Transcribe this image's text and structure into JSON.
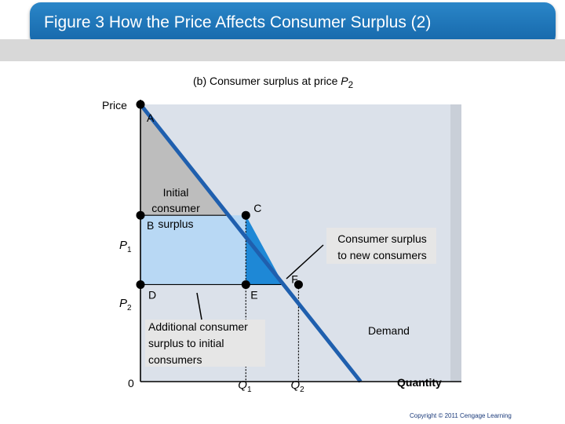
{
  "header": {
    "title": "Figure 3 How the Price Affects Consumer Surplus (2)"
  },
  "chart_data": {
    "type": "line",
    "panel": "(b) Consumer surplus at price",
    "panel_var": "P",
    "panel_sub": "2",
    "ylabel": "Price",
    "xlabel": "Quantity",
    "origin_label": "0",
    "y_ticks": [
      {
        "var": "P",
        "sub": "1",
        "value": 0.6
      },
      {
        "var": "P",
        "sub": "2",
        "value": 0.35
      }
    ],
    "x_ticks": [
      {
        "var": "Q",
        "sub": "1",
        "value": 0.34
      },
      {
        "var": "Q",
        "sub": "2",
        "value": 0.51
      }
    ],
    "demand": {
      "name": "Demand",
      "points": [
        [
          0,
          1
        ],
        [
          0.71,
          0
        ]
      ]
    },
    "points": [
      {
        "label": "A",
        "x": 0,
        "y": 1
      },
      {
        "label": "B",
        "x": 0,
        "y": 0.6
      },
      {
        "label": "C",
        "x": 0.34,
        "y": 0.6
      },
      {
        "label": "D",
        "x": 0,
        "y": 0.35
      },
      {
        "label": "E",
        "x": 0.34,
        "y": 0.35
      },
      {
        "label": "F",
        "x": 0.51,
        "y": 0.35
      }
    ],
    "regions": {
      "initial": [
        "Initial",
        "consumer",
        "surplus"
      ],
      "additional": [
        "Additional consumer",
        "surplus to initial",
        "consumers"
      ],
      "new": [
        "Consumer surplus",
        "to new consumers"
      ]
    },
    "colors": {
      "initial": "#bdbdbd",
      "additional": "#b8d8f4",
      "new": "#1e88d6",
      "demand": "#1f5fae",
      "panel": "#dbe1ea",
      "label_box": "#e6e6e6"
    }
  },
  "footer": {
    "copyright": "Copyright © 2011 Cengage Learning"
  }
}
